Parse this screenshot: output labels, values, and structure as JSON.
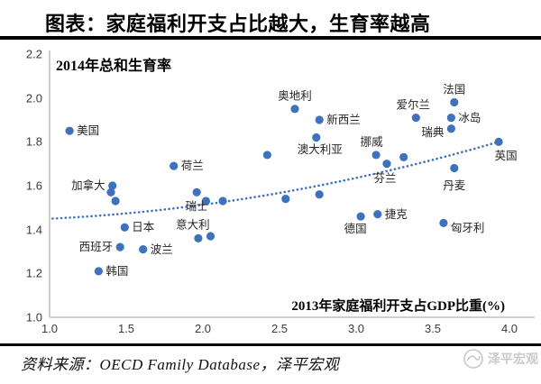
{
  "header": {
    "title": "图表：家庭福利开支占比越大，生育率越高"
  },
  "chart_data": {
    "type": "scatter",
    "y_axis_title": "2014年总和生育率",
    "x_axis_title": "2013年家庭福利开支占GDP比重(%)",
    "xlim": [
      1.0,
      4.0
    ],
    "ylim": [
      1.0,
      2.2
    ],
    "x_ticks": [
      1.0,
      1.5,
      2.0,
      2.5,
      3.0,
      3.5,
      4.0
    ],
    "y_ticks": [
      2.2,
      2.0,
      1.8,
      1.6,
      1.4,
      1.2,
      1.0
    ],
    "grid": false,
    "point_color": "#3F72BC",
    "points": [
      {
        "label": "美国",
        "x": 1.13,
        "y": 1.85,
        "anchor": "right"
      },
      {
        "label": "加拿大",
        "x": 1.41,
        "y": 1.6,
        "anchor": "left"
      },
      {
        "label": "",
        "x": 1.4,
        "y": 1.57,
        "anchor": "none"
      },
      {
        "label": "",
        "x": 1.43,
        "y": 1.53,
        "anchor": "none"
      },
      {
        "label": "韩国",
        "x": 1.32,
        "y": 1.21,
        "anchor": "right"
      },
      {
        "label": "西班牙",
        "x": 1.46,
        "y": 1.32,
        "anchor": "left"
      },
      {
        "label": "日本",
        "x": 1.49,
        "y": 1.41,
        "anchor": "right"
      },
      {
        "label": "波兰",
        "x": 1.61,
        "y": 1.31,
        "anchor": "right"
      },
      {
        "label": "荷兰",
        "x": 1.81,
        "y": 1.69,
        "anchor": "right"
      },
      {
        "label": "瑞士",
        "x": 1.96,
        "y": 1.57,
        "anchor": "below",
        "dy": 2
      },
      {
        "label": "",
        "x": 2.02,
        "y": 1.53,
        "anchor": "none"
      },
      {
        "label": "",
        "x": 2.13,
        "y": 1.53,
        "anchor": "none"
      },
      {
        "label": "意大利",
        "x": 1.97,
        "y": 1.36,
        "anchor": "above",
        "dx": -6
      },
      {
        "label": "",
        "x": 2.05,
        "y": 1.37,
        "anchor": "none"
      },
      {
        "label": "",
        "x": 2.42,
        "y": 1.74,
        "anchor": "none"
      },
      {
        "label": "奥地利",
        "x": 2.6,
        "y": 1.95,
        "anchor": "above"
      },
      {
        "label": "新西兰",
        "x": 2.76,
        "y": 1.9,
        "anchor": "right"
      },
      {
        "label": "澳大利亚",
        "x": 2.74,
        "y": 1.82,
        "anchor": "below",
        "dx": 4
      },
      {
        "label": "",
        "x": 2.54,
        "y": 1.54,
        "anchor": "none"
      },
      {
        "label": "",
        "x": 2.76,
        "y": 1.56,
        "anchor": "none"
      },
      {
        "label": "挪威",
        "x": 3.13,
        "y": 1.74,
        "anchor": "above",
        "dx": -5
      },
      {
        "label": "芬兰",
        "x": 3.2,
        "y": 1.7,
        "anchor": "below",
        "dx": -2,
        "dy": 2
      },
      {
        "label": "",
        "x": 3.31,
        "y": 1.73,
        "anchor": "none"
      },
      {
        "label": "德国",
        "x": 3.03,
        "y": 1.46,
        "anchor": "below",
        "dx": -6
      },
      {
        "label": "捷克",
        "x": 3.14,
        "y": 1.47,
        "anchor": "right"
      },
      {
        "label": "匈牙利",
        "x": 3.57,
        "y": 1.43,
        "anchor": "right",
        "dy": 6
      },
      {
        "label": "爱尔兰",
        "x": 3.39,
        "y": 1.91,
        "anchor": "above",
        "dx": -3
      },
      {
        "label": "法国",
        "x": 3.64,
        "y": 1.98,
        "anchor": "above"
      },
      {
        "label": "冰岛",
        "x": 3.62,
        "y": 1.91,
        "anchor": "right"
      },
      {
        "label": "瑞典",
        "x": 3.62,
        "y": 1.86,
        "anchor": "left",
        "dy": 4
      },
      {
        "label": "丹麦",
        "x": 3.64,
        "y": 1.68,
        "anchor": "below",
        "dy": 5
      },
      {
        "label": "英国",
        "x": 3.93,
        "y": 1.8,
        "anchor": "below",
        "dx": 8,
        "dy": 2
      }
    ],
    "trendline": {
      "style": "dotted",
      "color": "#3F72BC",
      "start": {
        "x": 1.02,
        "y": 1.45
      },
      "control": {
        "x": 2.45,
        "y": 1.5
      },
      "end": {
        "x": 3.93,
        "y": 1.8
      }
    }
  },
  "footer": {
    "source": "资料来源：OECD Family Database，泽平宏观",
    "watermark": "泽平宏观"
  }
}
